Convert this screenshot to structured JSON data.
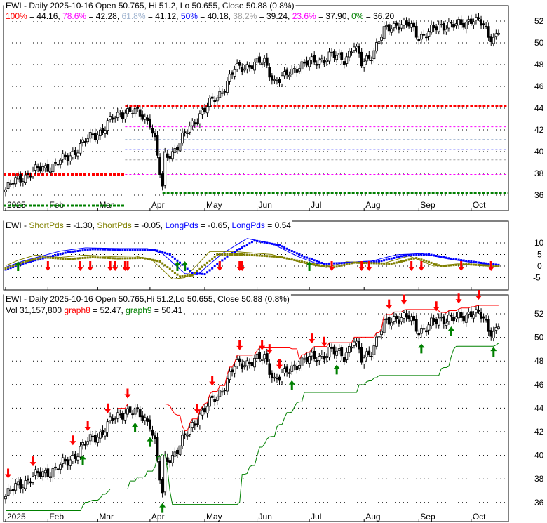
{
  "chart_data": {
    "type": "candlestick",
    "ticker": "EWI",
    "title": "EWI - Daily 2025-10-16 Open 50.765, Hi 51.2, Lo 50.655, Close 50.88 (0.8%)",
    "title_bottom": "EWI - Daily 2025-10-16 Open 50.765,Hi 51.2,Lo 50.655, Close 50.88 (0.8%)",
    "fib": [
      {
        "label": "100%",
        "value": 44.16,
        "text": "44.16",
        "color": "#ff0000"
      },
      {
        "label": "78.6%",
        "value": 42.28,
        "text": "42.28",
        "color": "#ff00ff"
      },
      {
        "label": "61.8%",
        "value": 41.12,
        "text": "41.12",
        "color": "#a0b4d0"
      },
      {
        "label": "50%",
        "value": 40.18,
        "text": "40.18",
        "color": "#0000ff"
      },
      {
        "label": "38.2%",
        "value": 39.24,
        "text": "39.24",
        "color": "#a0a0a0"
      },
      {
        "label": "23.6%",
        "value": 37.9,
        "text": "37.90",
        "color": "#ff00ff"
      },
      {
        "label": "0%",
        "value": 36.2,
        "text": "36.20",
        "color": "#008000"
      }
    ],
    "months": [
      {
        "label": "2025",
        "i": 0
      },
      {
        "label": "Feb",
        "i": 17
      },
      {
        "label": "Mar",
        "i": 37
      },
      {
        "label": "Apr",
        "i": 58
      },
      {
        "label": "May",
        "i": 80
      },
      {
        "label": "Jun",
        "i": 101
      },
      {
        "label": "Jul",
        "i": 122
      },
      {
        "label": "Aug",
        "i": 144
      },
      {
        "label": "Sep",
        "i": 166
      },
      {
        "label": "Oct",
        "i": 187
      }
    ],
    "price_ticks": [
      36,
      38,
      40,
      42,
      44,
      46,
      48,
      50,
      52
    ],
    "osc_ticks": [
      -5,
      0,
      5,
      10
    ],
    "close_keypoints": [
      [
        0,
        36.5
      ],
      [
        5,
        37.5
      ],
      [
        10,
        38
      ],
      [
        15,
        38.5
      ],
      [
        20,
        38.8
      ],
      [
        25,
        39.5
      ],
      [
        30,
        40.5
      ],
      [
        35,
        41.5
      ],
      [
        39,
        42
      ],
      [
        43,
        43
      ],
      [
        48,
        43.8
      ],
      [
        53,
        43.5
      ],
      [
        58,
        42.8
      ],
      [
        60,
        41
      ],
      [
        63,
        36.5
      ],
      [
        64,
        39.5
      ],
      [
        67,
        40
      ],
      [
        72,
        41.5
      ],
      [
        78,
        43.5
      ],
      [
        85,
        45
      ],
      [
        92,
        47.5
      ],
      [
        98,
        48
      ],
      [
        104,
        48.2
      ],
      [
        108,
        46.5
      ],
      [
        112,
        46.8
      ],
      [
        118,
        48
      ],
      [
        124,
        48.2
      ],
      [
        130,
        48.8
      ],
      [
        136,
        48.5
      ],
      [
        140,
        49.8
      ],
      [
        143,
        48
      ],
      [
        147,
        49
      ],
      [
        152,
        51
      ],
      [
        157,
        51.8
      ],
      [
        162,
        51.6
      ],
      [
        166,
        50.6
      ],
      [
        172,
        51.2
      ],
      [
        178,
        51.8
      ],
      [
        183,
        51.5
      ],
      [
        188,
        52.4
      ],
      [
        192,
        51.5
      ],
      [
        194,
        50.4
      ],
      [
        198,
        50.88
      ]
    ],
    "oscillator": {
      "legend": [
        {
          "name": "ShortPds",
          "text": " = -1.30",
          "color": "#808000"
        },
        {
          "name": "ShortPds",
          "text": " = -0.05",
          "color": "#808000"
        },
        {
          "name": "LongPds",
          "text": " = -0.65",
          "color": "#0000ff"
        },
        {
          "name": "LongPds",
          "text": " = 0.54",
          "color": "#0000ff"
        }
      ],
      "long": [
        [
          0,
          -1.5
        ],
        [
          10,
          2
        ],
        [
          25,
          6
        ],
        [
          35,
          7.3
        ],
        [
          50,
          7
        ],
        [
          60,
          7
        ],
        [
          66,
          5
        ],
        [
          75,
          -3
        ],
        [
          80,
          -3.5
        ],
        [
          90,
          5
        ],
        [
          100,
          11
        ],
        [
          110,
          9
        ],
        [
          120,
          4
        ],
        [
          128,
          1
        ],
        [
          140,
          1.5
        ],
        [
          150,
          2
        ],
        [
          160,
          4.5
        ],
        [
          170,
          5
        ],
        [
          180,
          3
        ],
        [
          190,
          1.5
        ],
        [
          198,
          0.5
        ]
      ],
      "short": [
        [
          0,
          -1
        ],
        [
          8,
          2
        ],
        [
          15,
          3.8
        ],
        [
          25,
          3
        ],
        [
          35,
          3.8
        ],
        [
          45,
          3.3
        ],
        [
          55,
          3.5
        ],
        [
          62,
          2
        ],
        [
          70,
          -4.5
        ],
        [
          75,
          -4
        ],
        [
          85,
          5
        ],
        [
          95,
          5
        ],
        [
          110,
          4
        ],
        [
          125,
          0.5
        ],
        [
          132,
          -0.5
        ],
        [
          140,
          1.5
        ],
        [
          155,
          1
        ],
        [
          165,
          3.5
        ],
        [
          175,
          0
        ],
        [
          185,
          0.8
        ],
        [
          198,
          -0.05
        ]
      ],
      "sell_signals": [
        17,
        30,
        34,
        42,
        44,
        48,
        49,
        86,
        94,
        95,
        131,
        143,
        146,
        163,
        167,
        183,
        195
      ],
      "buy_signals": [
        5,
        69,
        72,
        122
      ]
    },
    "bottom": {
      "vol_text": "Vol 31,157,800",
      "graph8_label": "graph8",
      "graph8_text": " = 52.47",
      "graph8_color": "#ff0000",
      "graph9_label": "graph9",
      "graph9_text": " = 50.41",
      "graph9_color": "#008000",
      "sell_signals": [
        1,
        11,
        27,
        33,
        41,
        49,
        77,
        83,
        94,
        103,
        106,
        110,
        123,
        128,
        154,
        160,
        173,
        182,
        190
      ],
      "buy_signals": [
        31,
        52,
        58,
        63,
        115,
        133,
        167,
        179,
        196
      ]
    }
  }
}
